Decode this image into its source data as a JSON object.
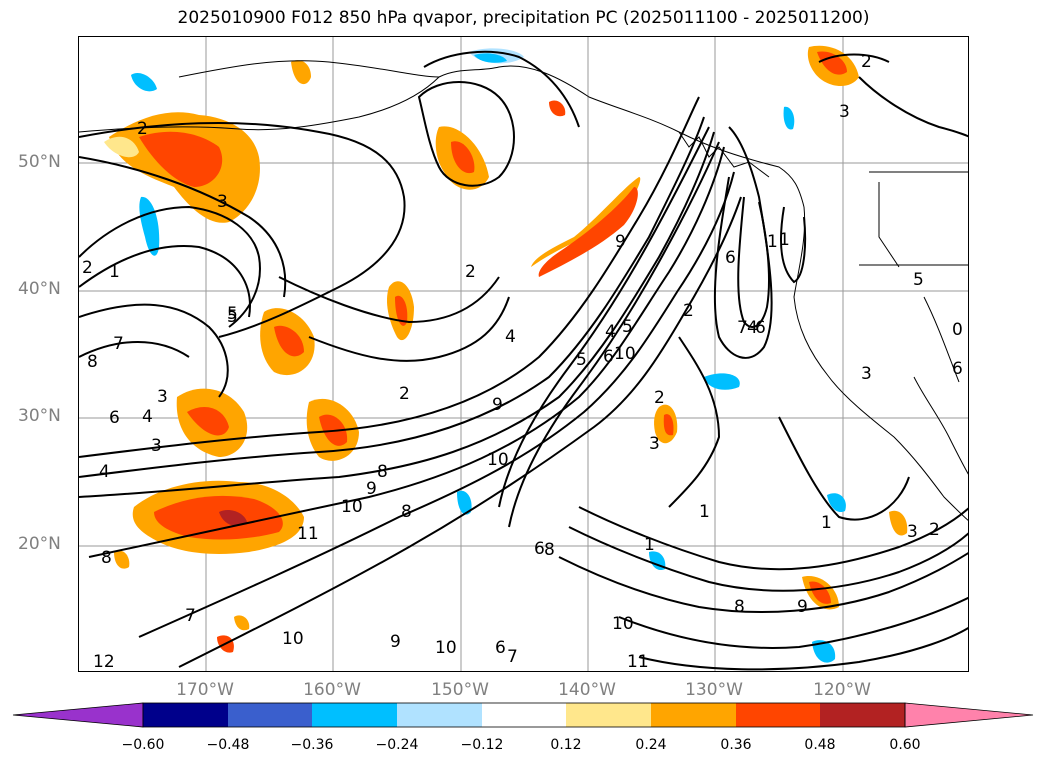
{
  "title": "2025010900 F012 850 hPa qvapor, precipitation PC (2025011100 - 2025011200)",
  "lat_labels": [
    "50°N",
    "40°N",
    "30°N",
    "20°N"
  ],
  "lon_labels": [
    "170°W",
    "160°W",
    "150°W",
    "140°W",
    "130°W",
    "120°W"
  ],
  "colorbar": {
    "ticks": [
      "−0.60",
      "−0.48",
      "−0.36",
      "−0.24",
      "−0.12",
      "0.12",
      "0.24",
      "0.36",
      "0.48",
      "0.60"
    ],
    "colors": [
      "#9932cc",
      "#00008b",
      "#3a5fcd",
      "#00bfff",
      "#b0e2ff",
      "#ffffff",
      "#ffe78c",
      "#ffa500",
      "#ff4500",
      "#b22222",
      "#ff82ab"
    ]
  },
  "contour_labels": [
    "2",
    "2",
    "3",
    "2",
    "1",
    "5",
    "7",
    "6",
    "4",
    "3",
    "4",
    "8",
    "9",
    "10",
    "11",
    "5",
    "10",
    "8",
    "2",
    "4",
    "5",
    "9",
    "10",
    "4",
    "5",
    "6",
    "3",
    "2",
    "1",
    "6",
    "7",
    "1",
    "9",
    "2",
    "4",
    "6",
    "3",
    "2",
    "5",
    "3",
    "6",
    "0",
    "1",
    "1",
    "1",
    "3",
    "8",
    "9",
    "10",
    "10",
    "11",
    "6",
    "7",
    "9",
    "10",
    "6",
    "2",
    "12",
    "8",
    "8",
    "7",
    "3",
    "8"
  ],
  "legend_extend": "both"
}
